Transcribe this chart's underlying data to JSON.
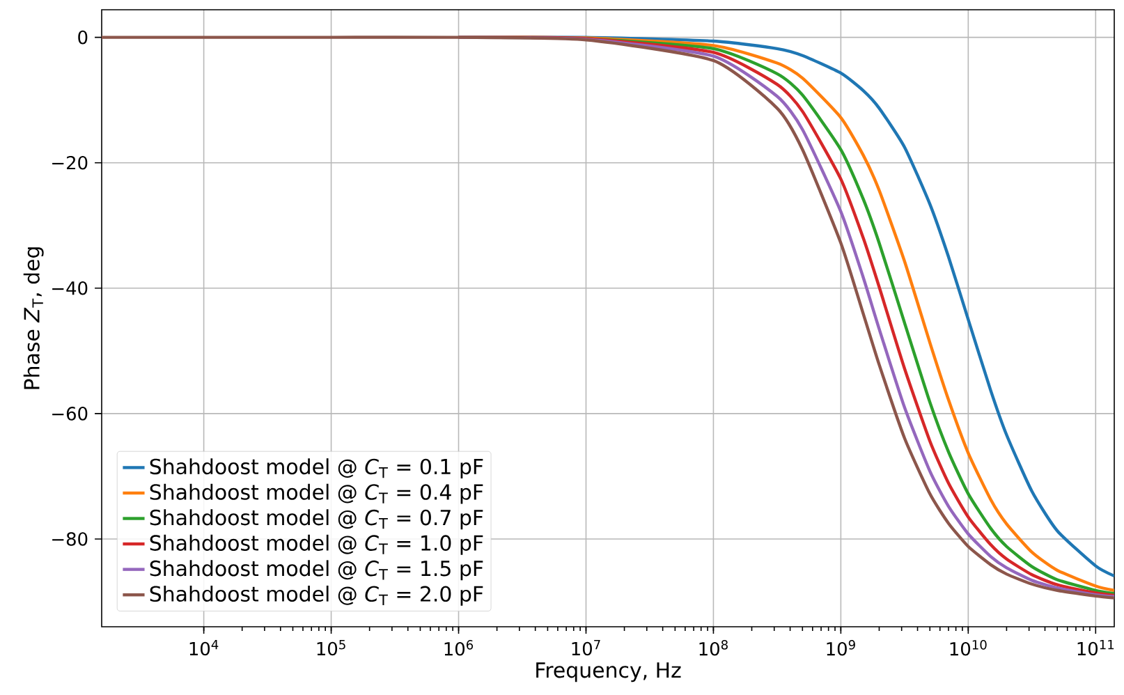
{
  "chart_data": {
    "type": "line",
    "xlabel": "Frequency, Hz",
    "ylabel": "Phase *Z*$_{T}$, deg",
    "log": "x",
    "grid": true,
    "legend": "bottom left",
    "marker": "none",
    "line_style": "solid",
    "x": [
      1580,
      10000,
      100000,
      1000000,
      10000000,
      100000000,
      316000000,
      500000000,
      1000000000,
      1500000000,
      2000000000,
      3160000000,
      5000000000,
      7000000000,
      10000000000,
      15000000000,
      20000000000,
      31600000000,
      50000000000,
      100000000000,
      140000000000
    ],
    "xlim": [
      1580,
      140000000000
    ],
    "xticks": [
      {
        "value": 10000,
        "label": "10$^{4}$"
      },
      {
        "value": 100000,
        "label": "10$^{5}$"
      },
      {
        "value": 1000000,
        "label": "10$^{6}$"
      },
      {
        "value": 10000000,
        "label": "10$^{7}$"
      },
      {
        "value": 100000000,
        "label": "10$^{8}$"
      },
      {
        "value": 1000000000,
        "label": "10$^{9}$"
      },
      {
        "value": 10000000000,
        "label": "10$^{10}$"
      },
      {
        "value": 100000000000,
        "label": "10$^{11}$"
      }
    ],
    "ylim": [
      -94,
      4.4
    ],
    "yticks": [
      {
        "value": 0,
        "label": "0"
      },
      {
        "value": -20,
        "label": "−20"
      },
      {
        "value": -40,
        "label": "−40"
      },
      {
        "value": -60,
        "label": "−60"
      },
      {
        "value": -80,
        "label": "−80"
      }
    ],
    "series": [
      {
        "name": "Shahdoost model @ *C*$_{T}$ = 0.1 pF",
        "color": "#1f77b4",
        "values": [
          null,
          null,
          null,
          0,
          0,
          -0.6,
          -1.8,
          -2.9,
          -5.7,
          -8.5,
          -11.3,
          -17.5,
          -26.6,
          -35.0,
          -45.0,
          -56.3,
          -63.4,
          -72.4,
          -78.7,
          -84.3,
          -85.9
        ]
      },
      {
        "name": "Shahdoost model @ *C*$_{T}$ = 0.4 pF",
        "color": "#ff7f0e",
        "values": [
          null,
          null,
          null,
          0,
          -0.1,
          -1.3,
          -4.1,
          -6.5,
          -12.8,
          -18.8,
          -24.4,
          -35.7,
          -48.7,
          -57.8,
          -66.3,
          -73.7,
          -77.6,
          -82.1,
          -85.0,
          -87.5,
          -88.2
        ]
      },
      {
        "name": "Shahdoost model @ *C*$_{T}$ = 0.7 pF",
        "color": "#2ca02c",
        "values": [
          null,
          null,
          null,
          0,
          -0.2,
          -1.8,
          -5.8,
          -9.2,
          -17.9,
          -25.8,
          -32.8,
          -45.5,
          -58.2,
          -66.1,
          -72.8,
          -78.3,
          -81.2,
          -84.4,
          -86.5,
          -88.2,
          -88.7
        ]
      },
      {
        "name": "Shahdoost model @ *C*$_{T}$ = 1.0 pF",
        "color": "#d62728",
        "values": [
          null,
          null,
          null,
          0,
          -0.2,
          -2.4,
          -7.5,
          -11.8,
          -22.6,
          -32.0,
          -39.8,
          -52.8,
          -64.4,
          -71.1,
          -76.5,
          -80.9,
          -83.2,
          -85.7,
          -87.3,
          -88.6,
          -89.0
        ]
      },
      {
        "name": "Shahdoost model @ *C*$_{T}$ = 1.5 pF",
        "color": "#9467bd",
        "values": [
          null,
          null,
          null,
          0,
          -0.3,
          -3.0,
          -9.4,
          -14.7,
          -27.8,
          -38.3,
          -46.5,
          -59.0,
          -69.2,
          -74.8,
          -79.2,
          -82.8,
          -84.6,
          -86.6,
          -87.8,
          -88.9,
          -89.2
        ]
      },
      {
        "name": "Shahdoost model @ *C*$_{T}$ = 2.0 pF",
        "color": "#8c564b",
        "values": [
          0,
          0,
          0,
          0,
          -0.4,
          -3.7,
          -11.3,
          -17.9,
          -32.8,
          -44.1,
          -52.2,
          -63.9,
          -72.8,
          -77.5,
          -81.2,
          -84.1,
          -85.6,
          -87.2,
          -88.2,
          -89.1,
          -89.4
        ]
      }
    ]
  }
}
